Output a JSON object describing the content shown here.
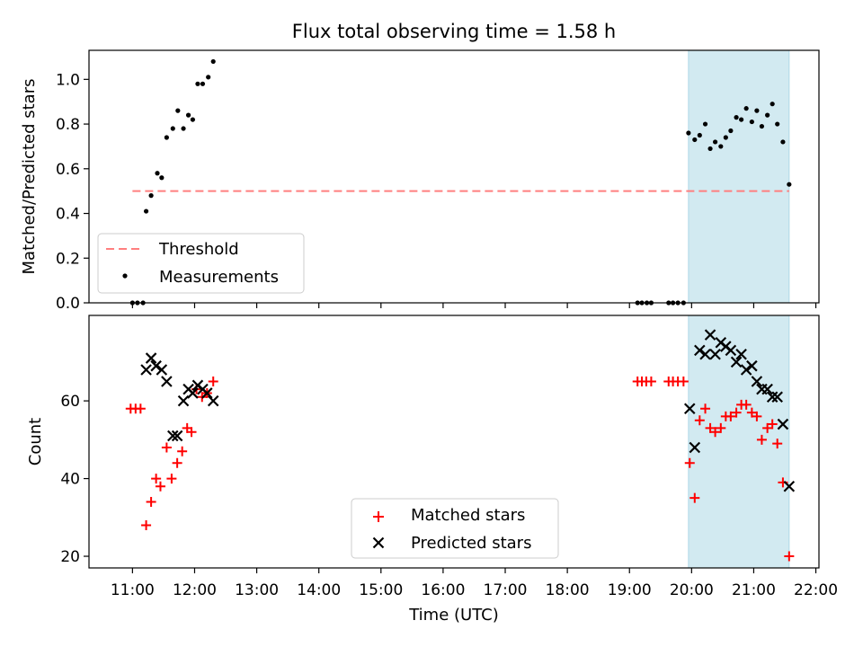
{
  "title": "Flux total observing time = 1.58 h",
  "chart_data": [
    {
      "type": "scatter",
      "panel": "top",
      "ylabel": "Matched/Predicted stars",
      "ylim": [
        0,
        1.13
      ],
      "yticks": [
        0.0,
        0.2,
        0.4,
        0.6,
        0.8,
        1.0
      ],
      "ytick_labels": [
        "0.0",
        "0.2",
        "0.4",
        "0.6",
        "0.8",
        "1.0"
      ],
      "shaded_span": {
        "start": 19.95,
        "end": 21.57,
        "color": "#add8e6"
      },
      "threshold": {
        "label": "Threshold",
        "value": 0.5,
        "x_range": [
          11.0,
          21.57
        ],
        "color": "#ff7f7f"
      },
      "legend": {
        "position": "lower-left",
        "entries": [
          "Threshold",
          "Measurements"
        ]
      },
      "series": [
        {
          "name": "Measurements",
          "color": "#000000",
          "points": [
            [
              11.0,
              0.0
            ],
            [
              11.08,
              0.0
            ],
            [
              11.17,
              0.0
            ],
            [
              11.22,
              0.41
            ],
            [
              11.3,
              0.48
            ],
            [
              11.4,
              0.58
            ],
            [
              11.47,
              0.56
            ],
            [
              11.55,
              0.74
            ],
            [
              11.65,
              0.78
            ],
            [
              11.73,
              0.86
            ],
            [
              11.82,
              0.78
            ],
            [
              11.9,
              0.84
            ],
            [
              11.97,
              0.82
            ],
            [
              12.05,
              0.98
            ],
            [
              12.13,
              0.98
            ],
            [
              12.22,
              1.01
            ],
            [
              12.3,
              1.08
            ],
            [
              19.13,
              0.0
            ],
            [
              19.2,
              0.0
            ],
            [
              19.28,
              0.0
            ],
            [
              19.35,
              0.0
            ],
            [
              19.63,
              0.0
            ],
            [
              19.7,
              0.0
            ],
            [
              19.78,
              0.0
            ],
            [
              19.87,
              0.0
            ],
            [
              19.95,
              0.76
            ],
            [
              20.05,
              0.73
            ],
            [
              20.13,
              0.75
            ],
            [
              20.22,
              0.8
            ],
            [
              20.3,
              0.69
            ],
            [
              20.38,
              0.72
            ],
            [
              20.47,
              0.7
            ],
            [
              20.55,
              0.74
            ],
            [
              20.63,
              0.77
            ],
            [
              20.72,
              0.83
            ],
            [
              20.8,
              0.82
            ],
            [
              20.88,
              0.87
            ],
            [
              20.97,
              0.81
            ],
            [
              21.05,
              0.86
            ],
            [
              21.13,
              0.79
            ],
            [
              21.22,
              0.84
            ],
            [
              21.3,
              0.89
            ],
            [
              21.38,
              0.8
            ],
            [
              21.47,
              0.72
            ],
            [
              21.57,
              0.53
            ]
          ]
        }
      ]
    },
    {
      "type": "scatter",
      "panel": "bottom",
      "xlabel": "Time (UTC)",
      "ylabel": "Count",
      "ylim": [
        17,
        82
      ],
      "xlim": [
        10.3,
        22.05
      ],
      "yticks": [
        20,
        40,
        60
      ],
      "ytick_labels": [
        "20",
        "40",
        "60"
      ],
      "xticks": [
        11,
        12,
        13,
        14,
        15,
        16,
        17,
        18,
        19,
        20,
        21,
        22
      ],
      "xtick_labels": [
        "11:00",
        "12:00",
        "13:00",
        "14:00",
        "15:00",
        "16:00",
        "17:00",
        "18:00",
        "19:00",
        "20:00",
        "21:00",
        "22:00"
      ],
      "shaded_span": {
        "start": 19.95,
        "end": 21.57,
        "color": "#add8e6"
      },
      "legend": {
        "position": "lower-center",
        "entries": [
          "Matched stars",
          "Predicted stars"
        ]
      },
      "series": [
        {
          "name": "Matched stars",
          "marker": "plus",
          "color": "#ff0000",
          "points": [
            [
              10.97,
              58
            ],
            [
              11.05,
              58
            ],
            [
              11.13,
              58
            ],
            [
              11.22,
              28
            ],
            [
              11.3,
              34
            ],
            [
              11.38,
              40
            ],
            [
              11.45,
              38
            ],
            [
              11.55,
              48
            ],
            [
              11.63,
              40
            ],
            [
              11.72,
              44
            ],
            [
              11.8,
              47
            ],
            [
              11.88,
              53
            ],
            [
              11.95,
              52
            ],
            [
              12.03,
              63
            ],
            [
              12.12,
              61
            ],
            [
              12.2,
              62
            ],
            [
              12.3,
              65
            ],
            [
              19.13,
              65
            ],
            [
              19.2,
              65
            ],
            [
              19.27,
              65
            ],
            [
              19.35,
              65
            ],
            [
              19.63,
              65
            ],
            [
              19.7,
              65
            ],
            [
              19.78,
              65
            ],
            [
              19.87,
              65
            ],
            [
              19.97,
              44
            ],
            [
              20.05,
              35
            ],
            [
              20.13,
              55
            ],
            [
              20.22,
              58
            ],
            [
              20.3,
              53
            ],
            [
              20.38,
              52
            ],
            [
              20.47,
              53
            ],
            [
              20.55,
              56
            ],
            [
              20.63,
              56
            ],
            [
              20.72,
              57
            ],
            [
              20.8,
              59
            ],
            [
              20.88,
              59
            ],
            [
              20.97,
              57
            ],
            [
              21.05,
              56
            ],
            [
              21.13,
              50
            ],
            [
              21.22,
              53
            ],
            [
              21.3,
              54
            ],
            [
              21.38,
              49
            ],
            [
              21.47,
              39
            ],
            [
              21.57,
              20
            ]
          ]
        },
        {
          "name": "Predicted stars",
          "marker": "x",
          "color": "#000000",
          "points": [
            [
              11.22,
              68
            ],
            [
              11.3,
              71
            ],
            [
              11.38,
              69
            ],
            [
              11.47,
              68
            ],
            [
              11.55,
              65
            ],
            [
              11.65,
              51
            ],
            [
              11.72,
              51
            ],
            [
              11.82,
              60
            ],
            [
              11.9,
              63
            ],
            [
              11.97,
              62
            ],
            [
              12.05,
              64
            ],
            [
              12.13,
              63
            ],
            [
              12.2,
              62
            ],
            [
              12.3,
              60
            ],
            [
              19.97,
              58
            ],
            [
              20.05,
              48
            ],
            [
              20.13,
              73
            ],
            [
              20.22,
              72
            ],
            [
              20.3,
              77
            ],
            [
              20.38,
              72
            ],
            [
              20.47,
              75
            ],
            [
              20.55,
              74
            ],
            [
              20.63,
              73
            ],
            [
              20.72,
              70
            ],
            [
              20.8,
              72
            ],
            [
              20.88,
              68
            ],
            [
              20.97,
              69
            ],
            [
              21.05,
              65
            ],
            [
              21.13,
              63
            ],
            [
              21.22,
              63
            ],
            [
              21.3,
              61
            ],
            [
              21.38,
              61
            ],
            [
              21.47,
              54
            ],
            [
              21.57,
              38
            ]
          ]
        }
      ]
    }
  ]
}
